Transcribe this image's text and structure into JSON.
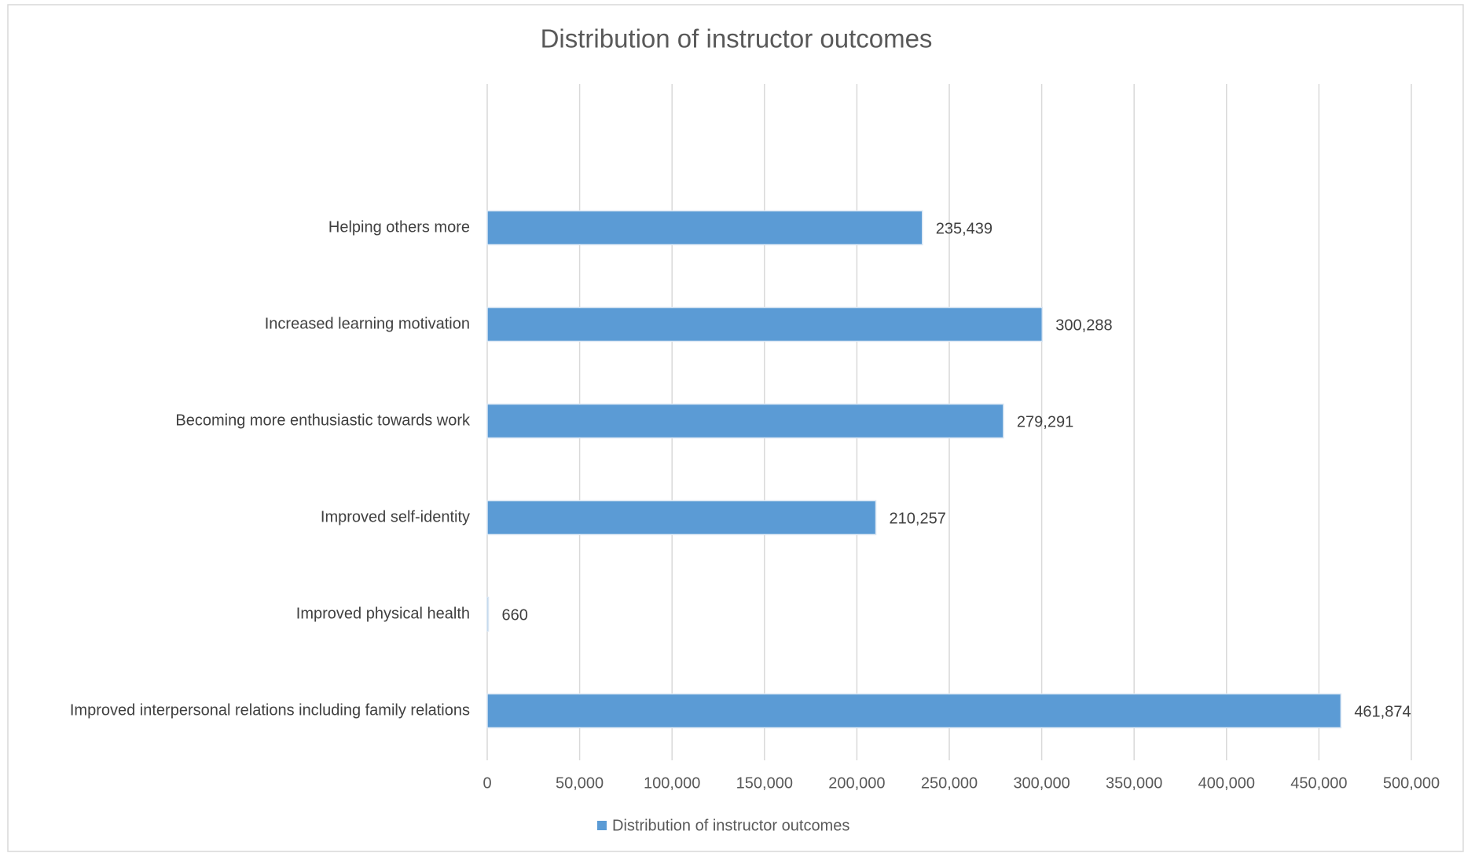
{
  "chart_data": {
    "type": "bar",
    "orientation": "horizontal",
    "title": "Distribution of instructor outcomes",
    "categories": [
      "Improved interpersonal relations including family relations",
      "Improved physical health",
      "Improved self-identity",
      "Becoming more enthusiastic towards work",
      "Increased learning motivation",
      "Helping others more"
    ],
    "series": [
      {
        "name": "Distribution of instructor outcomes",
        "color": "#5b9bd5",
        "values": [
          461874,
          660,
          210257,
          279291,
          300288,
          235439
        ],
        "value_labels": [
          "461,874",
          "660",
          "210,257",
          "279,291",
          "300,288",
          "235,439"
        ]
      }
    ],
    "xlim": [
      0,
      500000
    ],
    "xticks": [
      0,
      {
        "value": 50000,
        "label": "50,000"
      },
      {
        "value": 100000,
        "label": "100,000"
      },
      {
        "value": 150000,
        "label": "150,000"
      },
      {
        "value": 200000,
        "label": "200,000"
      },
      {
        "value": 250000,
        "label": "250,000"
      },
      {
        "value": 300000,
        "label": "300,000"
      },
      {
        "value": 350000,
        "label": "350,000"
      },
      {
        "value": 400000,
        "label": "400,000"
      },
      {
        "value": 450000,
        "label": "450,000"
      },
      {
        "value": 500000,
        "label": "500,000"
      }
    ],
    "grid": true,
    "legend": "bottom"
  }
}
